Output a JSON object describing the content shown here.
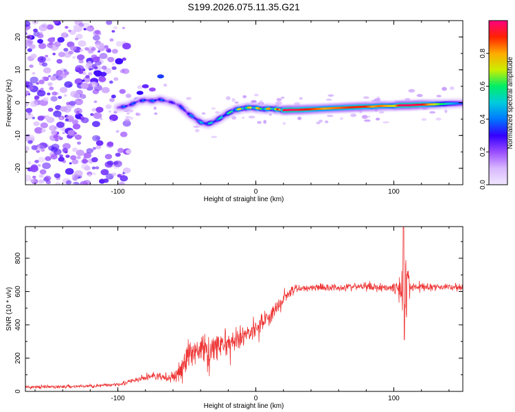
{
  "title": "S199.2026.075.11.35.G21",
  "chart_data": [
    {
      "type": "heatmap",
      "xlabel": "Height of straight line (km)",
      "ylabel": "Frequency (Hz)",
      "xlim": [
        -167,
        150
      ],
      "ylim": [
        -25,
        25
      ],
      "x_ticks": [
        -100,
        0,
        100
      ],
      "y_ticks": [
        -20,
        -10,
        0,
        10,
        20
      ],
      "colorbar": {
        "label": "Normalized spectral amplitude",
        "range": [
          0,
          1
        ],
        "ticks": [
          "0.0",
          "0.2",
          "0.4",
          "0.6",
          "0.8"
        ],
        "colors": [
          "#f0e6ff",
          "#d9b8ff",
          "#9a4dff",
          "#3300ff",
          "#0077ff",
          "#00ccdd",
          "#00ee66",
          "#ccee00",
          "#ffaa00",
          "#ff2200",
          "#ff0080"
        ]
      },
      "ridge": {
        "x": [
          -100,
          -95,
          -90,
          -85,
          -80,
          -75,
          -70,
          -65,
          -60,
          -55,
          -50,
          -45,
          -40,
          -35,
          -30,
          -25,
          -20,
          -15,
          -10,
          -5,
          0,
          5,
          10,
          15,
          20,
          25,
          30,
          40,
          50,
          60,
          70,
          80,
          85,
          90,
          95,
          100,
          105,
          110,
          120,
          130,
          140,
          150
        ],
        "freq": [
          -1.5,
          -1.2,
          -0.5,
          0.5,
          0.8,
          0.5,
          1.0,
          0.5,
          0.0,
          -1.0,
          -3.0,
          -4.5,
          -6.0,
          -6.5,
          -5.8,
          -4.5,
          -3.2,
          -2.2,
          -1.8,
          -1.5,
          -1.6,
          -2.0,
          -1.8,
          -2.0,
          -2.3,
          -2.2,
          -2.2,
          -2.0,
          -1.8,
          -1.6,
          -1.4,
          -1.2,
          -1.2,
          -1.0,
          -1.0,
          -1.0,
          -0.8,
          -0.8,
          -0.6,
          -0.5,
          -0.3,
          -0.2
        ],
        "amplitude": [
          0.35,
          0.4,
          0.4,
          0.35,
          0.4,
          0.4,
          0.45,
          0.35,
          0.3,
          0.35,
          0.4,
          0.45,
          0.5,
          0.55,
          0.55,
          0.55,
          0.6,
          0.7,
          0.8,
          0.8,
          0.85,
          0.8,
          0.85,
          0.9,
          0.95,
          0.98,
          0.95,
          0.9,
          0.8,
          0.85,
          0.9,
          0.9,
          0.8,
          0.85,
          0.8,
          0.7,
          0.98,
          0.98,
          0.95,
          0.7,
          0.5,
          0.35
        ]
      },
      "noise_region_x": [
        -167,
        -100
      ]
    },
    {
      "type": "line",
      "xlabel": "Height of straight line (km)",
      "ylabel": "SNR (10 * v/v)",
      "xlim": [
        -167,
        150
      ],
      "ylim": [
        0,
        990
      ],
      "x_ticks": [
        -100,
        0,
        100
      ],
      "y_ticks": [
        0,
        200,
        400,
        600,
        800
      ],
      "color": "#ee3333",
      "trend": {
        "x": [
          -167,
          -140,
          -110,
          -95,
          -85,
          -75,
          -65,
          -58,
          -52,
          -45,
          -40,
          -35,
          -30,
          -25,
          -20,
          -15,
          -10,
          -5,
          0,
          5,
          10,
          15,
          20,
          25,
          30,
          40,
          60,
          80,
          95,
          100,
          105,
          110,
          130,
          150
        ],
        "snr": [
          25,
          28,
          35,
          50,
          70,
          95,
          80,
          85,
          170,
          260,
          250,
          240,
          265,
          290,
          270,
          300,
          320,
          360,
          390,
          420,
          450,
          500,
          560,
          600,
          615,
          625,
          625,
          630,
          625,
          625,
          625,
          630,
          628,
          625
        ]
      },
      "noise_amplitude": {
        "x": [
          -167,
          -100,
          -80,
          -60,
          -50,
          -40,
          -30,
          -20,
          -10,
          0,
          10,
          20,
          30,
          60,
          95,
          100,
          104,
          108,
          112,
          150
        ],
        "amp": [
          15,
          18,
          35,
          40,
          140,
          150,
          120,
          110,
          100,
          90,
          85,
          80,
          40,
          35,
          40,
          60,
          120,
          320,
          50,
          30
        ]
      },
      "spike": {
        "x": 107,
        "max": 985,
        "min": 310
      }
    }
  ]
}
